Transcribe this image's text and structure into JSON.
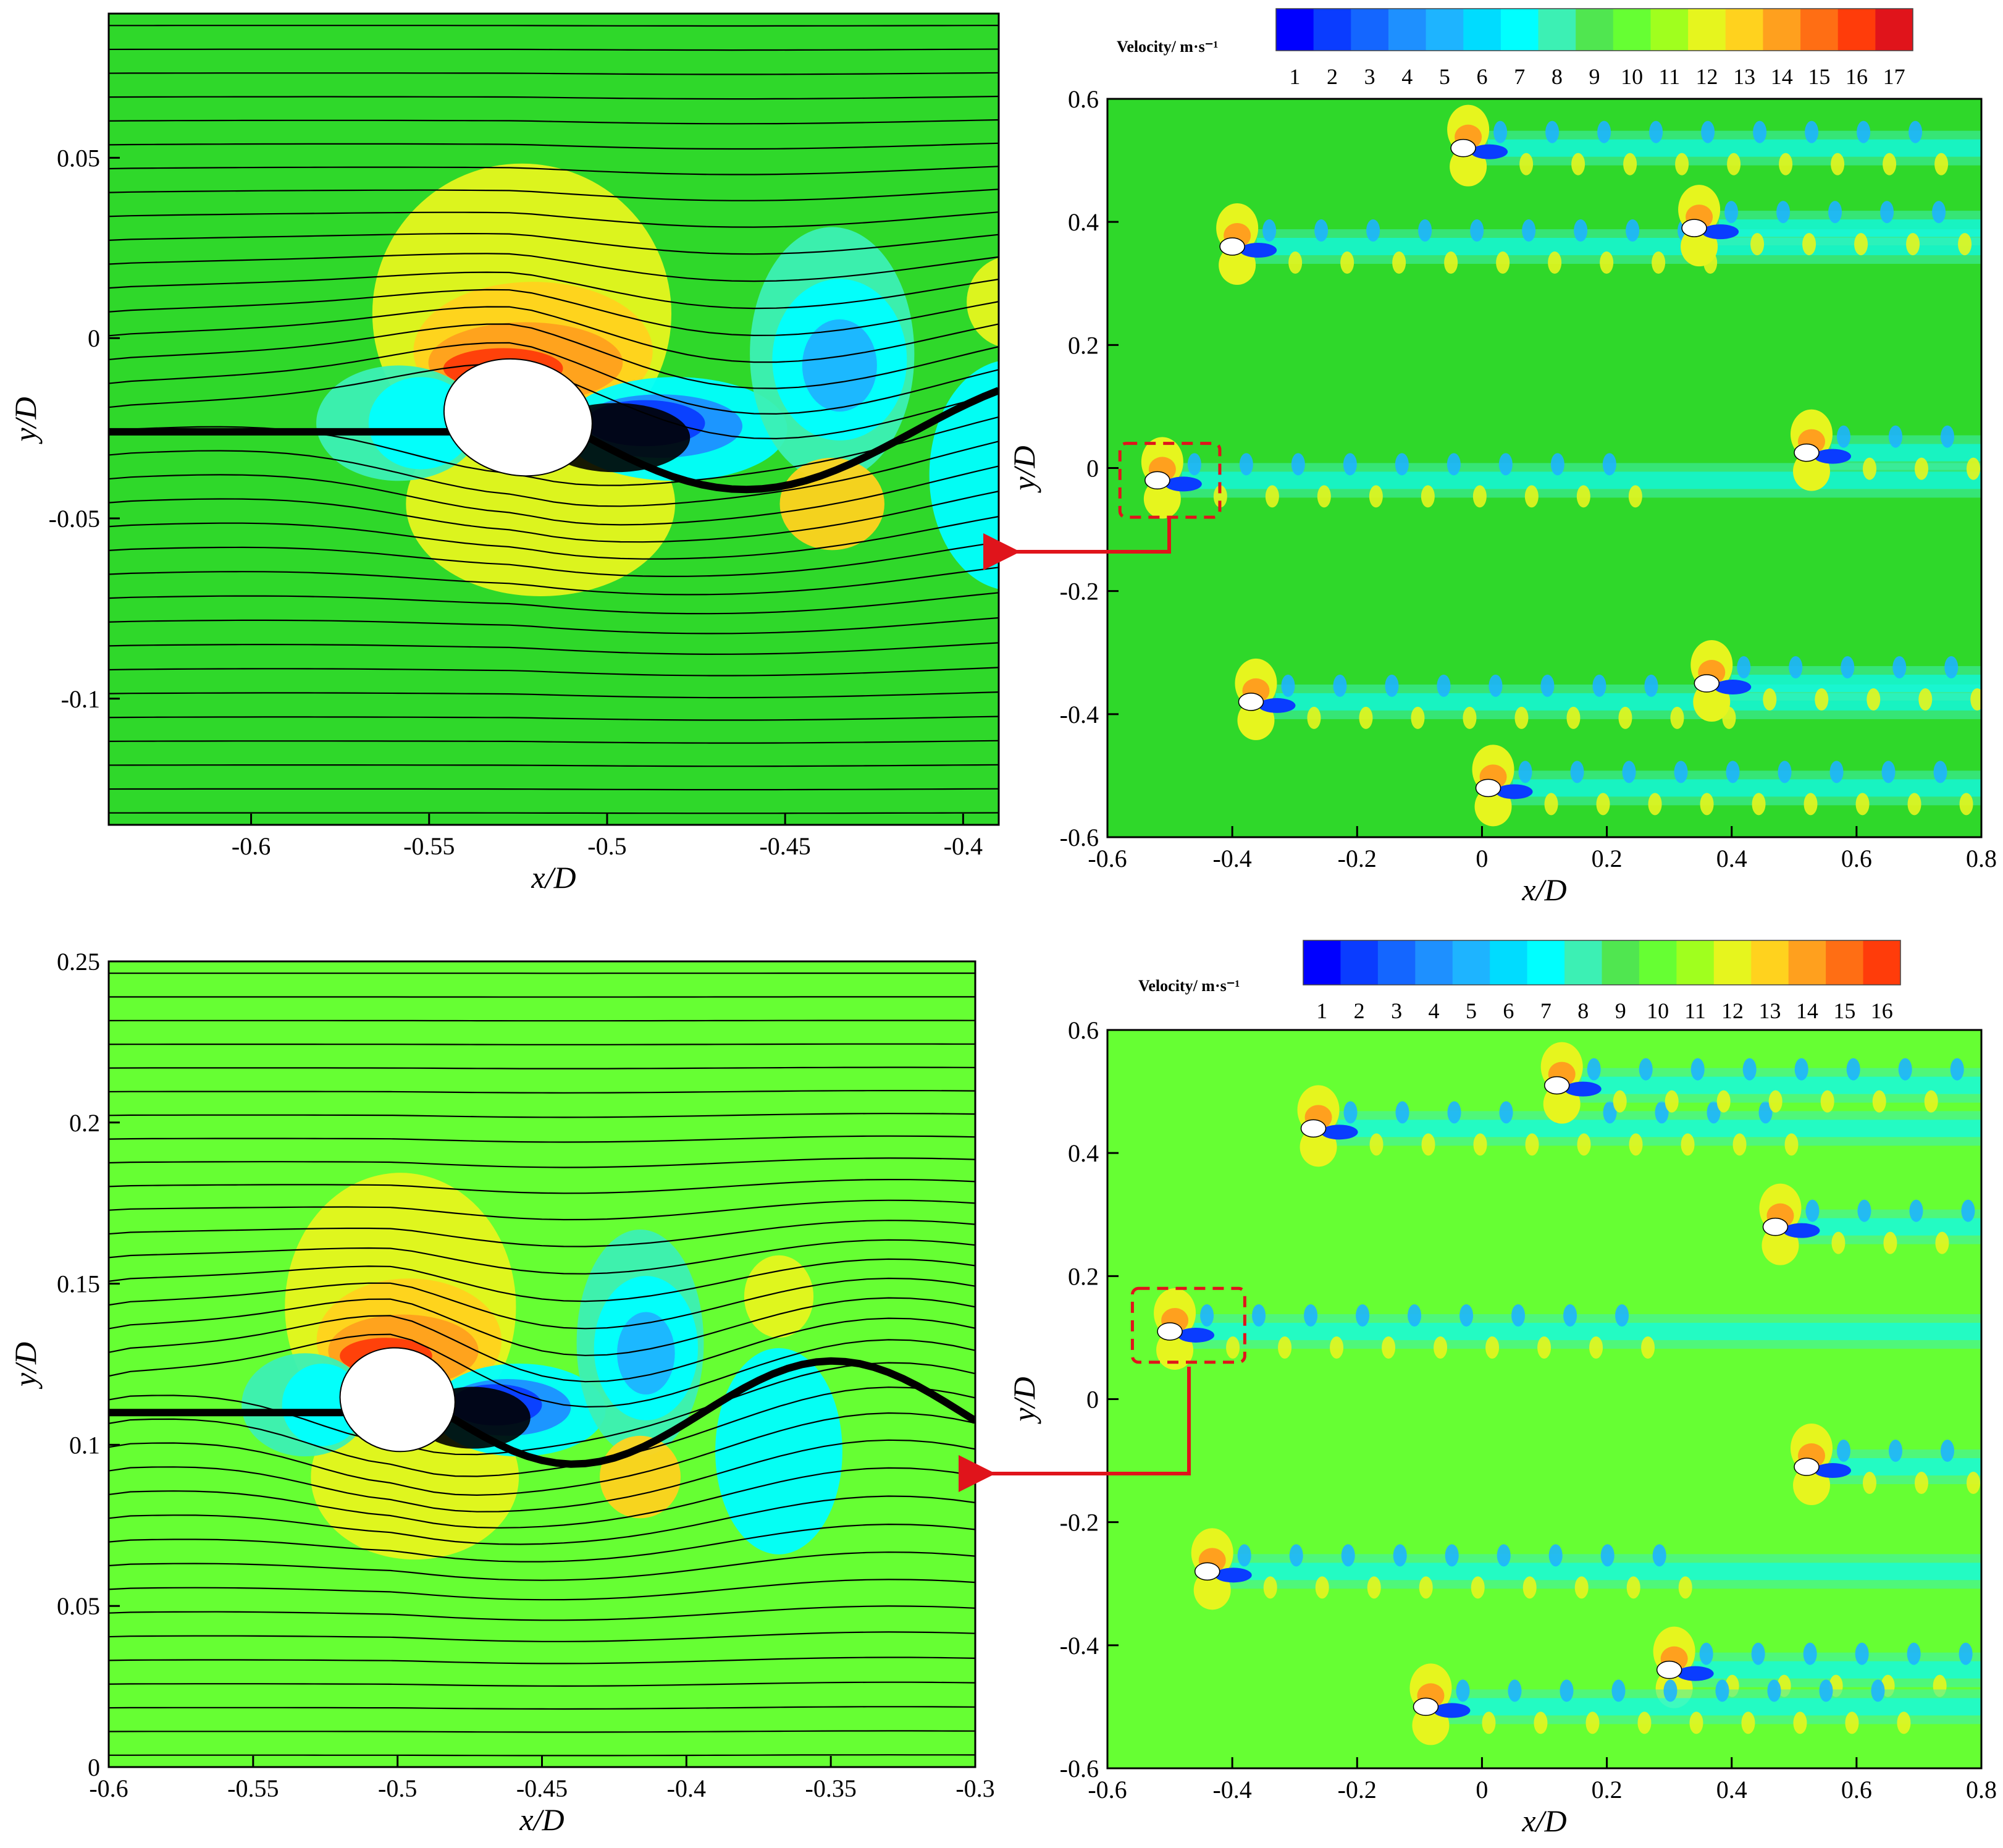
{
  "figure": {
    "description_colors": {
      "background_top": "#2fd82a",
      "background_bottom": "#66ff33",
      "arrow": "#e0141b",
      "streamline": "#000000",
      "box": "#e0141b"
    },
    "colormap": [
      "#0000ff",
      "#0a3cff",
      "#1466ff",
      "#1e90ff",
      "#1eb4ff",
      "#00dcff",
      "#00ffff",
      "#3cf0b4",
      "#50e650",
      "#66ff33",
      "#a0ff1e",
      "#e6f51e",
      "#ffd21e",
      "#ffa01e",
      "#ff6e14",
      "#ff3c0a",
      "#e0141b"
    ],
    "arrow_color": "#e0141b",
    "wake_color": "#1eb4ff",
    "streamline_color": "#000000"
  },
  "chart_data": [
    {
      "id": "top-left",
      "type": "contour-streamline",
      "xlabel": "x/D",
      "ylabel": "y/D",
      "xlim": [
        -0.64,
        -0.39
      ],
      "ylim": [
        -0.135,
        0.09
      ],
      "xticks": [
        -0.6,
        -0.55,
        -0.5,
        -0.45,
        -0.4
      ],
      "xtick_labels": [
        "-0.6",
        "-0.55",
        "-0.5",
        "-0.45",
        "-0.4"
      ],
      "yticks": [
        0.05,
        0,
        -0.05,
        -0.1
      ],
      "ytick_labels": [
        "0.05",
        "0",
        "-0.05",
        "-0.1"
      ],
      "background": "#2fd82a",
      "body": {
        "x": -0.525,
        "y": -0.022,
        "rx": 0.021,
        "ry": 0.016
      }
    },
    {
      "id": "top-right",
      "type": "contour",
      "xlabel": "x/D",
      "ylabel": "y/D",
      "xlim": [
        -0.6,
        0.8
      ],
      "ylim": [
        -0.6,
        0.6
      ],
      "xticks": [
        -0.6,
        -0.4,
        -0.2,
        0,
        0.2,
        0.4,
        0.6,
        0.8
      ],
      "xtick_labels": [
        "-0.6",
        "-0.4",
        "-0.2",
        "0",
        "0.2",
        "0.4",
        "0.6",
        "0.8"
      ],
      "yticks": [
        0.6,
        0.4,
        0.2,
        0,
        -0.2,
        -0.4,
        -0.6
      ],
      "ytick_labels": [
        "0.6",
        "0.4",
        "0.2",
        "0",
        "-0.2",
        "-0.4",
        "-0.6"
      ],
      "background": "#2fd82a",
      "colorbar": {
        "title": "Velocity/ m·s⁻¹",
        "ticks": [
          "1",
          "2",
          "3",
          "4",
          "5",
          "6",
          "7",
          "8",
          "9",
          "10",
          "11",
          "12",
          "13",
          "14",
          "15",
          "16",
          "17"
        ]
      },
      "bodies": [
        [
          -0.52,
          -0.02
        ],
        [
          -0.4,
          0.36
        ],
        [
          -0.03,
          0.52
        ],
        [
          0.34,
          0.39
        ],
        [
          0.52,
          0.025
        ],
        [
          -0.37,
          -0.38
        ],
        [
          0.36,
          -0.35
        ],
        [
          0.01,
          -0.52
        ]
      ],
      "highlight_box": {
        "x0": -0.58,
        "x1": -0.42,
        "y0": -0.08,
        "y1": 0.04
      }
    },
    {
      "id": "bottom-left",
      "type": "contour-streamline",
      "xlabel": "x/D",
      "ylabel": "y/D",
      "xlim": [
        -0.6,
        -0.3
      ],
      "ylim": [
        0,
        0.25
      ],
      "xticks": [
        -0.6,
        -0.55,
        -0.5,
        -0.45,
        -0.4,
        -0.35,
        -0.3
      ],
      "xtick_labels": [
        "-0.6",
        "-0.55",
        "-0.5",
        "-0.45",
        "-0.4",
        "-0.35",
        "-0.3"
      ],
      "yticks": [
        0.25,
        0.2,
        0.15,
        0.1,
        0.05,
        0
      ],
      "ytick_labels": [
        "0.25",
        "0.2",
        "0.15",
        "0.1",
        "0.05",
        "0"
      ],
      "background": "#66ff33",
      "body": {
        "x": -0.5,
        "y": 0.114,
        "rx": 0.02,
        "ry": 0.016
      }
    },
    {
      "id": "bottom-right",
      "type": "contour",
      "xlabel": "x/D",
      "ylabel": "y/D",
      "xlim": [
        -0.6,
        0.8
      ],
      "ylim": [
        -0.6,
        0.6
      ],
      "xticks": [
        -0.6,
        -0.4,
        -0.2,
        0,
        0.2,
        0.4,
        0.6,
        0.8
      ],
      "xtick_labels": [
        "-0.6",
        "-0.4",
        "-0.2",
        "0",
        "0.2",
        "0.4",
        "0.6",
        "0.8"
      ],
      "yticks": [
        0.6,
        0.4,
        0.2,
        0,
        -0.2,
        -0.4,
        -0.6
      ],
      "ytick_labels": [
        "0.6",
        "0.4",
        "0.2",
        "0",
        "-0.2",
        "-0.4",
        "-0.6"
      ],
      "background": "#66ff33",
      "colorbar": {
        "title": "Velocity/ m·s⁻¹",
        "ticks": [
          "1",
          "2",
          "3",
          "4",
          "5",
          "6",
          "7",
          "8",
          "9",
          "10",
          "11",
          "12",
          "13",
          "14",
          "15",
          "16"
        ]
      },
      "bodies": [
        [
          -0.5,
          0.11
        ],
        [
          -0.27,
          0.44
        ],
        [
          0.12,
          0.51
        ],
        [
          0.47,
          0.28
        ],
        [
          0.52,
          -0.11
        ],
        [
          -0.44,
          -0.28
        ],
        [
          0.3,
          -0.44
        ],
        [
          -0.09,
          -0.5
        ]
      ],
      "highlight_box": {
        "x0": -0.56,
        "x1": -0.38,
        "y0": 0.06,
        "y1": 0.18
      }
    }
  ]
}
